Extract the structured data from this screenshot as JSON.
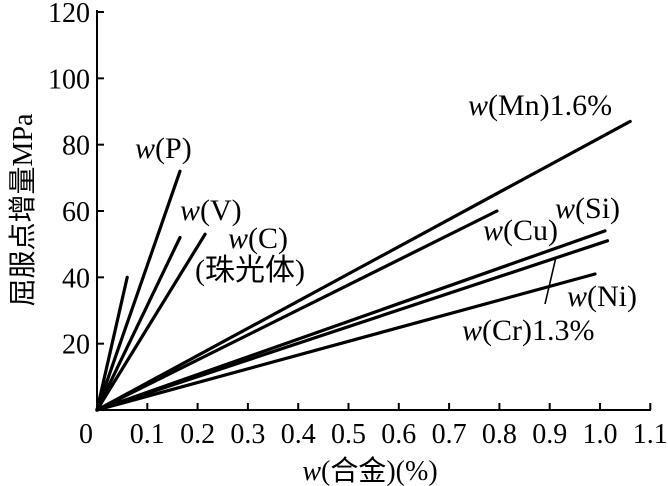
{
  "chart_data": {
    "type": "line",
    "title": "",
    "xlabel": "w(合金)(%)",
    "ylabel": "屈服点增量MPa",
    "xlim": [
      0,
      1.1
    ],
    "ylim": [
      0,
      120
    ],
    "xticks": [
      "0",
      "0.1",
      "0.2",
      "0.3",
      "0.4",
      "0.5",
      "0.6",
      "0.7",
      "0.8",
      "0.9",
      "1.0",
      "1.1"
    ],
    "yticks": [
      "20",
      "40",
      "60",
      "80",
      "100",
      "120"
    ],
    "grid": false,
    "legend": false,
    "line_color": "#000000",
    "series": [
      {
        "x": [
          0,
          0.06
        ],
        "y": [
          0,
          40
        ]
      },
      {
        "name": "w(P)",
        "x": [
          0,
          0.165
        ],
        "y": [
          0,
          72
        ]
      },
      {
        "name": "w(V)",
        "x": [
          0,
          0.165
        ],
        "y": [
          0,
          52
        ]
      },
      {
        "name": "w(C)",
        "note": "(珠光体)",
        "x": [
          0,
          0.215
        ],
        "y": [
          0,
          53
        ]
      },
      {
        "name": "w(Mn)1.6%",
        "x": [
          0,
          1.06
        ],
        "y": [
          0,
          87
        ]
      },
      {
        "name": "w(Cu)",
        "x": [
          0,
          0.795
        ],
        "y": [
          0,
          60
        ]
      },
      {
        "name": "w(Si)",
        "x": [
          0,
          1.01
        ],
        "y": [
          0,
          54
        ]
      },
      {
        "name": "w(Cr)1.3%",
        "x": [
          0,
          1.015
        ],
        "y": [
          0,
          51
        ]
      },
      {
        "name": "w(Ni)",
        "x": [
          0,
          0.99
        ],
        "y": [
          0,
          41
        ]
      }
    ]
  }
}
